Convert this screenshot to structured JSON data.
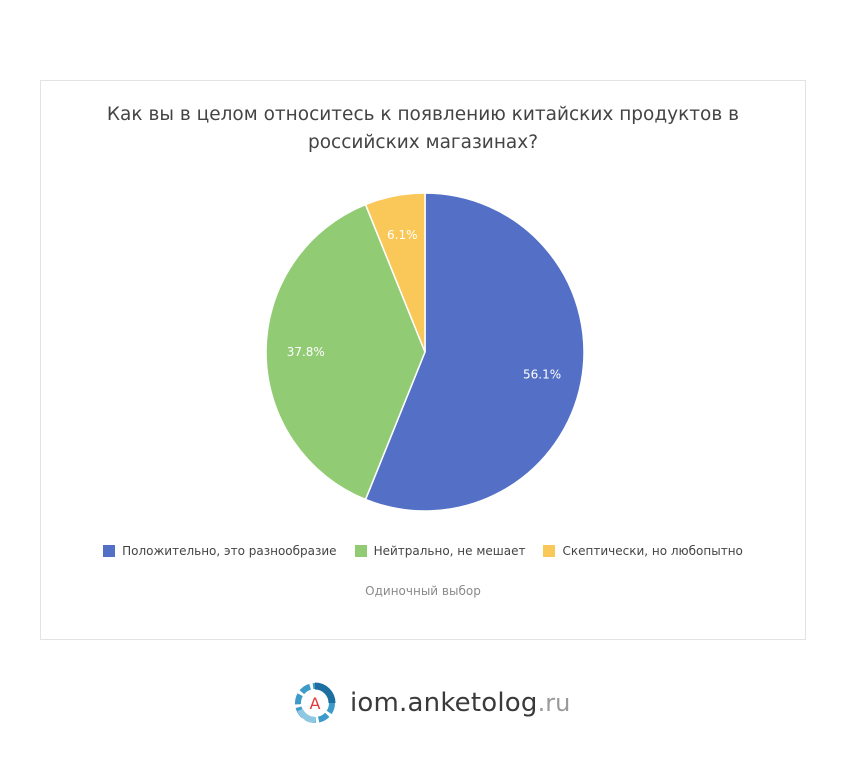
{
  "chart": {
    "title": "Как вы в целом относитесь к появлению китайских продуктов в российских магазинах?",
    "subtitle": "Одиночный выбор"
  },
  "legend": [
    {
      "label": "Положительно, это разнообразие",
      "color": "#5470c6"
    },
    {
      "label": "Нейтрально, не мешает",
      "color": "#91cc75"
    },
    {
      "label": "Скептически, но любопытно",
      "color": "#fac858"
    }
  ],
  "slice_labels": [
    "56.1%",
    "37.8%",
    "6.1%"
  ],
  "footer": {
    "logo_letter": "A",
    "site_name": "iom.anketolog",
    "site_tld": ".ru"
  },
  "chart_data": {
    "type": "pie",
    "title": "Как вы в целом относитесь к появлению китайских продуктов в российских магазинах?",
    "subtitle": "Одиночный выбор",
    "categories": [
      "Положительно, это разнообразие",
      "Нейтрально, не мешает",
      "Скептически, но любопытно"
    ],
    "values": [
      56.1,
      37.8,
      6.1
    ],
    "unit": "%",
    "colors": [
      "#5470c6",
      "#91cc75",
      "#fac858"
    ],
    "start_angle": "12 o'clock, clockwise",
    "legend_position": "bottom"
  }
}
